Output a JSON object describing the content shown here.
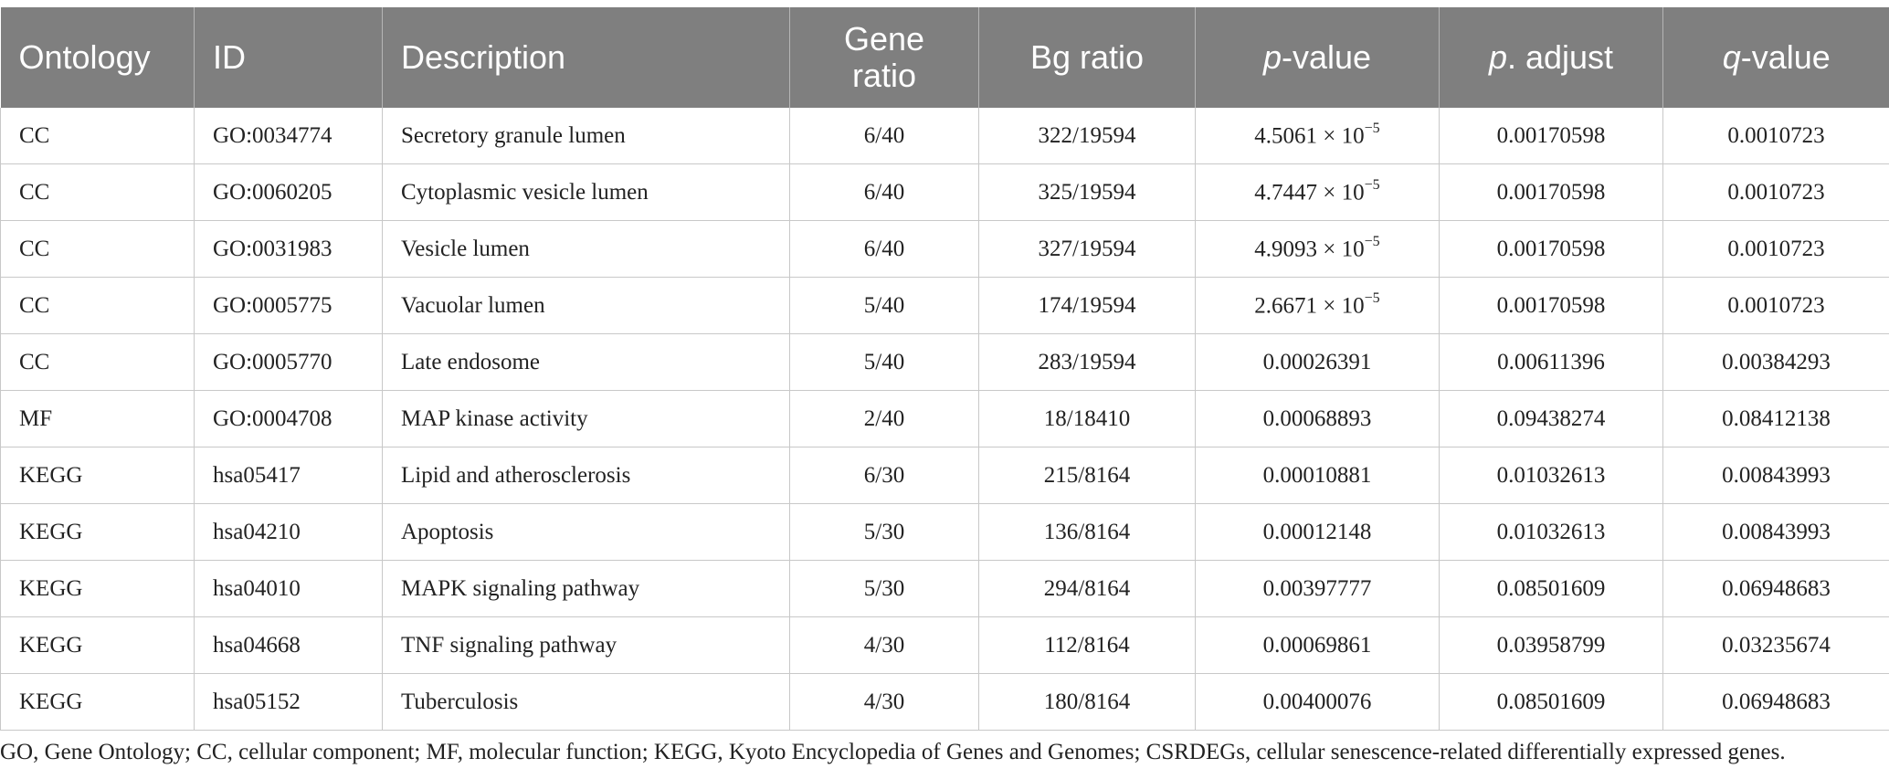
{
  "headers": [
    {
      "text": "Ontology",
      "italic": "",
      "rest": ""
    },
    {
      "text": "ID",
      "italic": "",
      "rest": ""
    },
    {
      "text": "Description",
      "italic": "",
      "rest": ""
    },
    {
      "text": "Gene ratio",
      "italic": "",
      "rest": ""
    },
    {
      "text": "Bg ratio",
      "italic": "",
      "rest": ""
    },
    {
      "text": "",
      "italic": "p",
      "rest": "-value"
    },
    {
      "text": "",
      "italic": "p",
      "rest": ". adjust"
    },
    {
      "text": "",
      "italic": "q",
      "rest": "-value"
    }
  ],
  "rows": [
    {
      "ontology": "CC",
      "id": "GO:0034774",
      "description": "Secretory granule lumen",
      "gene_ratio": "6/40",
      "bg_ratio": "322/19594",
      "p_value": {
        "mantissa": "4.5061 × 10",
        "exp": "−5"
      },
      "p_adjust": "0.00170598",
      "q_value": "0.0010723"
    },
    {
      "ontology": "CC",
      "id": "GO:0060205",
      "description": "Cytoplasmic vesicle lumen",
      "gene_ratio": "6/40",
      "bg_ratio": "325/19594",
      "p_value": {
        "mantissa": "4.7447 × 10",
        "exp": "−5"
      },
      "p_adjust": "0.00170598",
      "q_value": "0.0010723"
    },
    {
      "ontology": "CC",
      "id": "GO:0031983",
      "description": "Vesicle lumen",
      "gene_ratio": "6/40",
      "bg_ratio": "327/19594",
      "p_value": {
        "mantissa": "4.9093 × 10",
        "exp": "−5"
      },
      "p_adjust": "0.00170598",
      "q_value": "0.0010723"
    },
    {
      "ontology": "CC",
      "id": "GO:0005775",
      "description": "Vacuolar lumen",
      "gene_ratio": "5/40",
      "bg_ratio": "174/19594",
      "p_value": {
        "mantissa": "2.6671 × 10",
        "exp": "−5"
      },
      "p_adjust": "0.00170598",
      "q_value": "0.0010723"
    },
    {
      "ontology": "CC",
      "id": "GO:0005770",
      "description": "Late endosome",
      "gene_ratio": "5/40",
      "bg_ratio": "283/19594",
      "p_value": {
        "mantissa": "0.00026391",
        "exp": ""
      },
      "p_adjust": "0.00611396",
      "q_value": "0.00384293"
    },
    {
      "ontology": "MF",
      "id": "GO:0004708",
      "description": "MAP kinase activity",
      "gene_ratio": "2/40",
      "bg_ratio": "18/18410",
      "p_value": {
        "mantissa": "0.00068893",
        "exp": ""
      },
      "p_adjust": "0.09438274",
      "q_value": "0.08412138"
    },
    {
      "ontology": "KEGG",
      "id": "hsa05417",
      "description": "Lipid and atherosclerosis",
      "gene_ratio": "6/30",
      "bg_ratio": "215/8164",
      "p_value": {
        "mantissa": "0.00010881",
        "exp": ""
      },
      "p_adjust": "0.01032613",
      "q_value": "0.00843993"
    },
    {
      "ontology": "KEGG",
      "id": "hsa04210",
      "description": "Apoptosis",
      "gene_ratio": "5/30",
      "bg_ratio": "136/8164",
      "p_value": {
        "mantissa": "0.00012148",
        "exp": ""
      },
      "p_adjust": "0.01032613",
      "q_value": "0.00843993"
    },
    {
      "ontology": "KEGG",
      "id": "hsa04010",
      "description": "MAPK signaling pathway",
      "gene_ratio": "5/30",
      "bg_ratio": "294/8164",
      "p_value": {
        "mantissa": "0.00397777",
        "exp": ""
      },
      "p_adjust": "0.08501609",
      "q_value": "0.06948683"
    },
    {
      "ontology": "KEGG",
      "id": "hsa04668",
      "description": "TNF signaling pathway",
      "gene_ratio": "4/30",
      "bg_ratio": "112/8164",
      "p_value": {
        "mantissa": "0.00069861",
        "exp": ""
      },
      "p_adjust": "0.03958799",
      "q_value": "0.03235674"
    },
    {
      "ontology": "KEGG",
      "id": "hsa05152",
      "description": "Tuberculosis",
      "gene_ratio": "4/30",
      "bg_ratio": "180/8164",
      "p_value": {
        "mantissa": "0.00400076",
        "exp": ""
      },
      "p_adjust": "0.08501609",
      "q_value": "0.06948683"
    }
  ],
  "footnote": "GO, Gene Ontology; CC, cellular component; MF, molecular function; KEGG, Kyoto Encyclopedia of Genes and Genomes; CSRDEGs, cellular senescence-related differentially expressed genes."
}
